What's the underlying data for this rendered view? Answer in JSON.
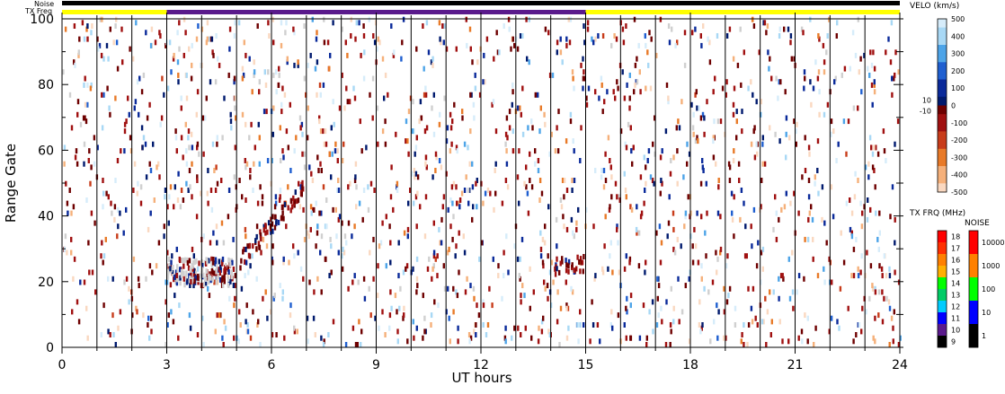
{
  "chart_data": {
    "type": "heatmap",
    "title": "",
    "xlabel": "UT hours",
    "ylabel": "Range Gate",
    "xlim": [
      0,
      24
    ],
    "ylim": [
      0,
      100
    ],
    "x_ticks": [
      "0",
      "3",
      "6",
      "9",
      "12",
      "15",
      "18",
      "21",
      "24"
    ],
    "y_ticks": [
      "0",
      "20",
      "40",
      "60",
      "80",
      "100"
    ],
    "top_bars": {
      "noise_label": "Noise",
      "txfreq_label": "TX Freq",
      "txfreq_segments": [
        {
          "from": 0,
          "to": 3,
          "color": "#ffff00"
        },
        {
          "from": 3,
          "to": 15,
          "color": "#5a1a8c"
        },
        {
          "from": 15,
          "to": 24,
          "color": "#ffff00"
        }
      ],
      "noise_color": "#000000"
    },
    "scan_boundaries_hours": [
      1,
      2,
      3,
      4,
      5,
      6,
      7,
      8,
      9,
      10,
      11,
      12,
      13,
      14,
      15,
      16,
      17,
      18,
      19,
      20,
      21,
      22,
      23
    ],
    "velocity_colorbar": {
      "title": "VELO (km/s)",
      "range": [
        -500,
        500
      ],
      "tick_labels": [
        "500",
        "400",
        "300",
        "200",
        "100",
        "0",
        "10",
        "-10",
        "-100",
        "-200",
        "-300",
        "-400",
        "-500"
      ]
    },
    "txfreq_colorbar": {
      "title": "TX FRQ (MHz)",
      "tick_labels": [
        "18",
        "17",
        "16",
        "15",
        "14",
        "13",
        "12",
        "11",
        "10",
        "9"
      ],
      "colors": [
        "#ff0000",
        "#ff3000",
        "#ff8000",
        "#ffb000",
        "#00ff00",
        "#00cc66",
        "#00ccff",
        "#0000ff",
        "#5a1a8c",
        "#000000"
      ]
    },
    "noise_colorbar": {
      "title": "NOISE",
      "tick_labels": [
        "10000",
        "1000",
        "100",
        "10",
        "1"
      ],
      "colors": [
        "#ff0000",
        "#ff8000",
        "#00ff00",
        "#0000ff",
        "#000000"
      ]
    },
    "features": [
      {
        "name": "ground scatter patch",
        "x": [
          3.0,
          4.9
        ],
        "y": [
          18,
          26
        ]
      },
      {
        "name": "rising echo streak",
        "x": [
          5.0,
          6.9
        ],
        "y": [
          24,
          48
        ]
      },
      {
        "name": "midday echo cluster",
        "x": [
          14.1,
          15.0
        ],
        "y": [
          21,
          27
        ]
      }
    ]
  }
}
